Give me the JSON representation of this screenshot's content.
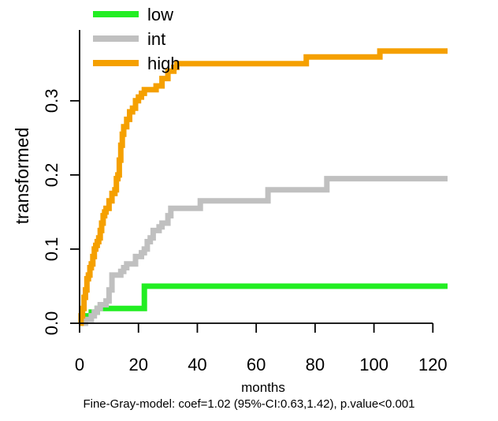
{
  "chart_data": {
    "type": "line",
    "step": true,
    "xlabel": "months",
    "ylabel": "transformed",
    "xlim": [
      0,
      125
    ],
    "ylim": [
      0,
      0.37
    ],
    "x_ticks": [
      0,
      20,
      40,
      60,
      80,
      100,
      120
    ],
    "y_ticks": [
      0.0,
      0.1,
      0.2,
      0.3
    ],
    "y_tick_labels": [
      "0.0",
      "0.1",
      "0.2",
      "0.3"
    ],
    "legend_position": "top-left",
    "series": [
      {
        "name": "low",
        "color": "#22ee22",
        "points": [
          [
            0,
            0
          ],
          [
            1,
            0.005
          ],
          [
            2,
            0.01
          ],
          [
            4,
            0.015
          ],
          [
            6,
            0.02
          ],
          [
            22,
            0.02
          ],
          [
            22,
            0.05
          ],
          [
            125,
            0.05
          ]
        ]
      },
      {
        "name": "int",
        "color": "#c0c0c0",
        "points": [
          [
            0,
            0
          ],
          [
            2,
            0.005
          ],
          [
            4,
            0.01
          ],
          [
            5,
            0.015
          ],
          [
            6,
            0.02
          ],
          [
            7,
            0.025
          ],
          [
            9,
            0.03
          ],
          [
            10,
            0.045
          ],
          [
            11,
            0.065
          ],
          [
            14,
            0.07
          ],
          [
            15,
            0.075
          ],
          [
            16,
            0.08
          ],
          [
            18,
            0.08
          ],
          [
            19,
            0.09
          ],
          [
            21,
            0.095
          ],
          [
            22,
            0.1
          ],
          [
            23,
            0.11
          ],
          [
            24,
            0.115
          ],
          [
            25,
            0.125
          ],
          [
            27,
            0.13
          ],
          [
            28,
            0.135
          ],
          [
            30,
            0.145
          ],
          [
            31,
            0.155
          ],
          [
            40,
            0.155
          ],
          [
            41,
            0.165
          ],
          [
            63,
            0.165
          ],
          [
            64,
            0.18
          ],
          [
            83,
            0.18
          ],
          [
            84,
            0.195
          ],
          [
            125,
            0.195
          ]
        ]
      },
      {
        "name": "high",
        "color": "#f5a000",
        "points": [
          [
            0,
            0
          ],
          [
            0.5,
            0.01
          ],
          [
            1,
            0.02
          ],
          [
            1.5,
            0.035
          ],
          [
            2,
            0.045
          ],
          [
            2.5,
            0.06
          ],
          [
            3,
            0.065
          ],
          [
            3.5,
            0.075
          ],
          [
            4,
            0.08
          ],
          [
            4.5,
            0.09
          ],
          [
            5,
            0.1
          ],
          [
            5.5,
            0.105
          ],
          [
            6,
            0.11
          ],
          [
            6.5,
            0.115
          ],
          [
            7,
            0.125
          ],
          [
            7.5,
            0.135
          ],
          [
            8,
            0.145
          ],
          [
            8.5,
            0.15
          ],
          [
            9,
            0.155
          ],
          [
            10,
            0.165
          ],
          [
            11,
            0.175
          ],
          [
            12,
            0.18
          ],
          [
            12.5,
            0.195
          ],
          [
            13,
            0.2
          ],
          [
            13.5,
            0.22
          ],
          [
            14,
            0.24
          ],
          [
            14.5,
            0.255
          ],
          [
            15,
            0.265
          ],
          [
            16,
            0.275
          ],
          [
            17,
            0.285
          ],
          [
            18,
            0.29
          ],
          [
            19,
            0.3
          ],
          [
            20,
            0.305
          ],
          [
            21,
            0.31
          ],
          [
            22,
            0.315
          ],
          [
            26,
            0.32
          ],
          [
            28,
            0.33
          ],
          [
            30,
            0.34
          ],
          [
            32,
            0.345
          ],
          [
            33,
            0.35
          ],
          [
            77,
            0.35
          ],
          [
            77,
            0.359
          ],
          [
            102,
            0.359
          ],
          [
            102,
            0.367
          ],
          [
            125,
            0.367
          ]
        ]
      }
    ],
    "annotation": "Fine-Gray-model: coef=1.02 (95%-CI:0.63,1.42), p.value<0.001"
  }
}
